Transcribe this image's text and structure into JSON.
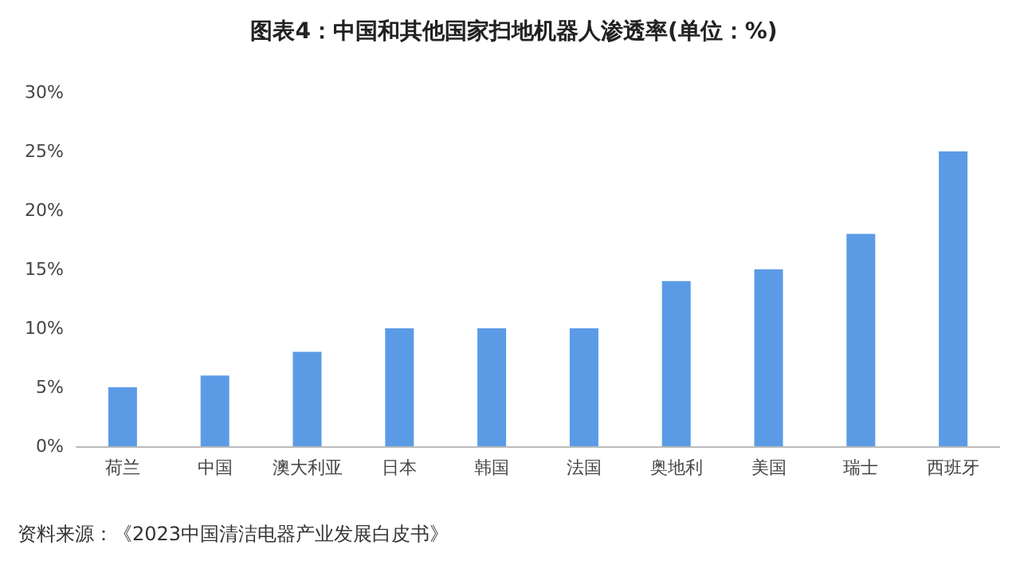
{
  "chart_data": {
    "type": "bar",
    "title": "图表4：中国和其他国家扫地机器人渗透率(单位：%)",
    "categories": [
      "荷兰",
      "中国",
      "澳大利亚",
      "日本",
      "韩国",
      "法国",
      "奥地利",
      "美国",
      "瑞士",
      "西班牙"
    ],
    "values": [
      5,
      6,
      8,
      10,
      10,
      10,
      14,
      15,
      18,
      25
    ],
    "color": "#5b9be6",
    "ylim": [
      0,
      30
    ],
    "yticks": [
      {
        "value": 0,
        "label": "0%"
      },
      {
        "value": 5,
        "label": "5%"
      },
      {
        "value": 10,
        "label": "10%"
      },
      {
        "value": 15,
        "label": "15%"
      },
      {
        "value": 20,
        "label": "20%"
      },
      {
        "value": 25,
        "label": "25%"
      },
      {
        "value": 30,
        "label": "30%"
      }
    ],
    "grid": false,
    "annotations": [
      "资料来源：《2023中国清洁电器产业发展白皮书》"
    ]
  }
}
